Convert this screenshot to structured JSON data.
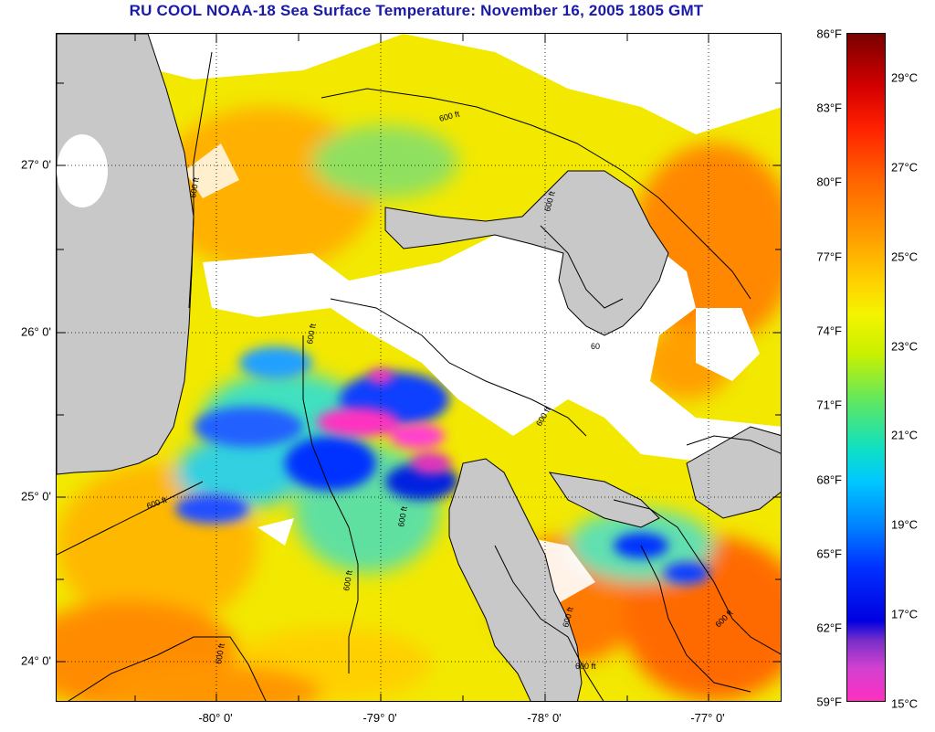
{
  "title": "RU COOL  NOAA-18  Sea Surface Temperature:  November 16, 2005 1805 GMT",
  "lat_labels": [
    "27° 0'",
    "26° 0'",
    "25° 0'",
    "24° 0'"
  ],
  "lon_labels": [
    "-80° 0'",
    "-79° 0'",
    "-78° 0'",
    "-77° 0'"
  ],
  "contour_label": "600 ft",
  "contour_label_short": "60",
  "colorbar": {
    "fahrenheit": [
      "86°F",
      "83°F",
      "80°F",
      "77°F",
      "74°F",
      "71°F",
      "68°F",
      "65°F",
      "62°F",
      "59°F"
    ],
    "celsius": [
      "29°C",
      "27°C",
      "25°C",
      "23°C",
      "21°C",
      "19°C",
      "17°C",
      "15°C"
    ],
    "range_f": [
      59,
      86
    ]
  },
  "colors": {
    "title": "#1a1aa8",
    "land": "#c8c8c8",
    "cloud": "#ffffff",
    "warm": "#ff9a00",
    "mid": "#f4f000",
    "cool": "#40e0a0",
    "cold": "#0020ff",
    "coldest": "#ff30c0"
  }
}
